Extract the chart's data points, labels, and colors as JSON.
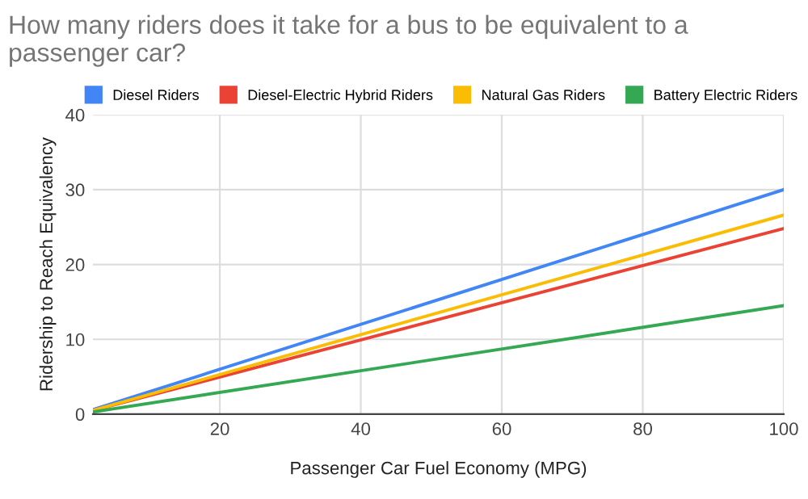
{
  "chart_data": {
    "type": "line",
    "title": "How many riders does it take for a bus to be equivalent to a passenger car?",
    "xlabel": "Passenger Car Fuel Economy (MPG)",
    "ylabel": "Ridership to Reach Equivalency",
    "x": [
      2,
      100
    ],
    "series": [
      {
        "name": "Diesel Riders",
        "color": "#4285f4",
        "values": [
          0.6,
          30
        ]
      },
      {
        "name": "Diesel-Electric Hybrid Riders",
        "color": "#ea4335",
        "values": [
          0.5,
          24.8
        ]
      },
      {
        "name": "Natural Gas Riders",
        "color": "#fbbc04",
        "values": [
          0.5,
          26.6
        ]
      },
      {
        "name": "Battery Electric Riders",
        "color": "#34a853",
        "values": [
          0.3,
          14.5
        ]
      }
    ],
    "xlim": [
      2,
      100
    ],
    "xticks": [
      20,
      40,
      60,
      80,
      100
    ],
    "ylim": [
      0,
      40
    ],
    "yticks": [
      0,
      10,
      20,
      30,
      40
    ],
    "grid": true,
    "legend": "top",
    "marker": "none",
    "line_style": "solid"
  }
}
